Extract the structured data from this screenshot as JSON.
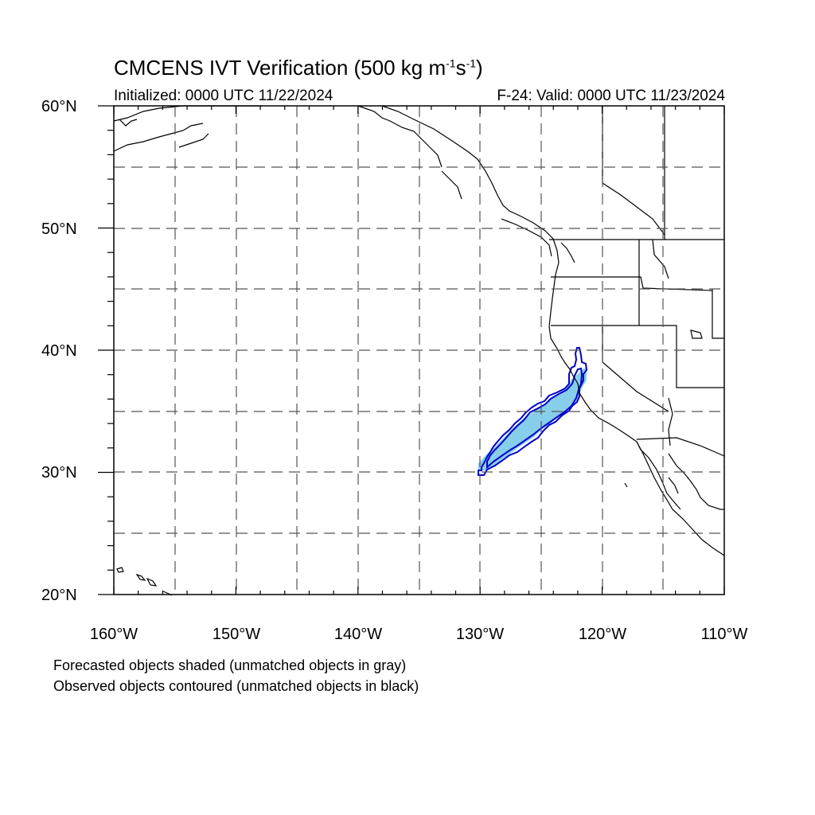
{
  "title": {
    "main": "CMCENS IVT Verification (500 kg m",
    "sup1": "-1",
    "mid": "s",
    "sup2": "-1",
    "end": ")"
  },
  "initialized": "Initialized: 0000 UTC 11/22/2024",
  "valid": "F-24: Valid: 0000 UTC 11/23/2024",
  "lat_labels": [
    "60°N",
    "50°N",
    "40°N",
    "30°N",
    "20°N"
  ],
  "lon_labels": [
    "160°W",
    "150°W",
    "140°W",
    "130°W",
    "120°W",
    "110°W"
  ],
  "notes": [
    "Forecasted objects shaded (unmatched objects in gray)",
    "Observed objects contoured (unmatched objects in black)"
  ],
  "colors": {
    "forecast_fill": "#87ceeb",
    "observed_contour": "#0000cc",
    "grid": "#555555",
    "coast": "#000000"
  }
}
